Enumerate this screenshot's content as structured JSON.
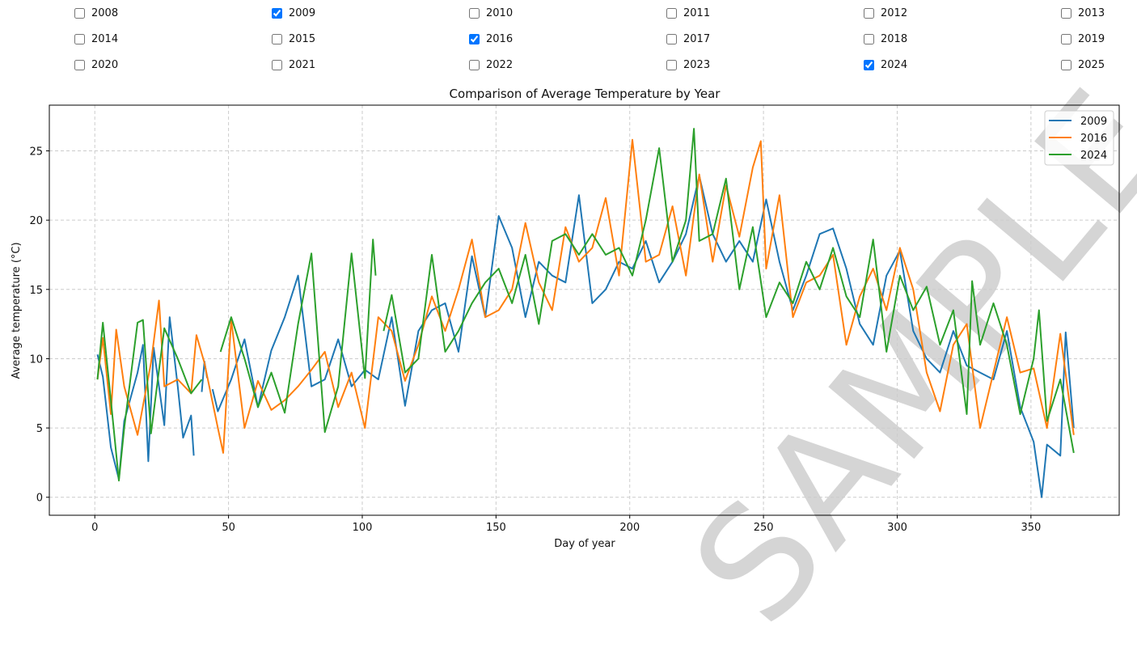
{
  "year_filters": [
    {
      "label": "2008",
      "checked": false
    },
    {
      "label": "2009",
      "checked": true
    },
    {
      "label": "2010",
      "checked": false
    },
    {
      "label": "2011",
      "checked": false
    },
    {
      "label": "2012",
      "checked": false
    },
    {
      "label": "2013",
      "checked": false
    },
    {
      "label": "2014",
      "checked": false
    },
    {
      "label": "2015",
      "checked": false
    },
    {
      "label": "2016",
      "checked": true
    },
    {
      "label": "2017",
      "checked": false
    },
    {
      "label": "2018",
      "checked": false
    },
    {
      "label": "2019",
      "checked": false
    },
    {
      "label": "2020",
      "checked": false
    },
    {
      "label": "2021",
      "checked": false
    },
    {
      "label": "2022",
      "checked": false
    },
    {
      "label": "2023",
      "checked": false
    },
    {
      "label": "2024",
      "checked": true
    },
    {
      "label": "2025",
      "checked": false
    }
  ],
  "watermark": "SAMPLE",
  "chart_data": {
    "type": "line",
    "title": "Comparison of Average Temperature by Year",
    "xlabel": "Day of year",
    "ylabel": "Average temperature (°C)",
    "xlim": [
      -17,
      383
    ],
    "ylim": [
      -1.3,
      28.3
    ],
    "xticks": [
      0,
      50,
      100,
      150,
      200,
      250,
      300,
      350
    ],
    "yticks": [
      0,
      5,
      10,
      15,
      20,
      25
    ],
    "grid": true,
    "legend": "top-right",
    "series": [
      {
        "name": "2009",
        "color": "#1f77b4",
        "points": [
          [
            1,
            10.3
          ],
          [
            3,
            8.7
          ],
          [
            6,
            3.6
          ],
          [
            9,
            1.3
          ],
          [
            11,
            5.5
          ],
          [
            16,
            9
          ],
          [
            18,
            11
          ],
          [
            20,
            2.6
          ],
          [
            22,
            10.8
          ],
          [
            26,
            5.2
          ],
          [
            28,
            13
          ],
          [
            31,
            8
          ],
          [
            33,
            4.3
          ],
          [
            36,
            5.9
          ],
          [
            37,
            3.0
          ],
          [
            38,
            null
          ],
          [
            40,
            7.6
          ],
          [
            41,
            9.8
          ],
          [
            42,
            8.6
          ],
          [
            43,
            null
          ],
          [
            44,
            7.8
          ],
          [
            46,
            6.2
          ],
          [
            51,
            8.5
          ],
          [
            56,
            11.4
          ],
          [
            61,
            6.5
          ],
          [
            66,
            10.6
          ],
          [
            71,
            13
          ],
          [
            76,
            16
          ],
          [
            81,
            8
          ],
          [
            86,
            8.5
          ],
          [
            91,
            11.4
          ],
          [
            96,
            8
          ],
          [
            101,
            9.2
          ],
          [
            106,
            8.5
          ],
          [
            111,
            13
          ],
          [
            116,
            6.6
          ],
          [
            121,
            12
          ],
          [
            126,
            13.5
          ],
          [
            131,
            14
          ],
          [
            136,
            10.5
          ],
          [
            141,
            17.4
          ],
          [
            146,
            13
          ],
          [
            151,
            20.3
          ],
          [
            156,
            18
          ],
          [
            161,
            13
          ],
          [
            166,
            17
          ],
          [
            171,
            16
          ],
          [
            176,
            15.5
          ],
          [
            181,
            21.8
          ],
          [
            186,
            14
          ],
          [
            191,
            15
          ],
          [
            196,
            17
          ],
          [
            201,
            16.5
          ],
          [
            206,
            18.5
          ],
          [
            211,
            15.5
          ],
          [
            216,
            17
          ],
          [
            221,
            19
          ],
          [
            226,
            23.2
          ],
          [
            231,
            19
          ],
          [
            236,
            17
          ],
          [
            241,
            18.5
          ],
          [
            246,
            17
          ],
          [
            251,
            21.5
          ],
          [
            256,
            17
          ],
          [
            261,
            13.5
          ],
          [
            266,
            16
          ],
          [
            271,
            19
          ],
          [
            276,
            19.4
          ],
          [
            281,
            16.5
          ],
          [
            286,
            12.5
          ],
          [
            291,
            11
          ],
          [
            296,
            16
          ],
          [
            301,
            17.8
          ],
          [
            306,
            12
          ],
          [
            311,
            10
          ],
          [
            316,
            9
          ],
          [
            321,
            12
          ],
          [
            326,
            9.5
          ],
          [
            331,
            9
          ],
          [
            336,
            8.5
          ],
          [
            341,
            12
          ],
          [
            346,
            6.5
          ],
          [
            351,
            4
          ],
          [
            354,
            0
          ],
          [
            356,
            3.8
          ],
          [
            361,
            3
          ],
          [
            363,
            11.9
          ],
          [
            366,
            5
          ]
        ]
      },
      {
        "name": "2016",
        "color": "#ff7f0e",
        "points": [
          [
            1,
            8.5
          ],
          [
            3,
            11.5
          ],
          [
            6,
            6
          ],
          [
            8,
            12.1
          ],
          [
            11,
            8
          ],
          [
            16,
            4.5
          ],
          [
            21,
            9.7
          ],
          [
            24,
            14.2
          ],
          [
            26,
            8
          ],
          [
            31,
            8.5
          ],
          [
            36,
            7.5
          ],
          [
            38,
            11.7
          ],
          [
            41,
            9.7
          ],
          [
            46,
            5
          ],
          [
            48,
            3.2
          ],
          [
            51,
            12.8
          ],
          [
            56,
            5
          ],
          [
            61,
            8.4
          ],
          [
            66,
            6.3
          ],
          [
            71,
            7
          ],
          [
            76,
            8
          ],
          [
            81,
            9.2
          ],
          [
            86,
            10.5
          ],
          [
            91,
            6.5
          ],
          [
            96,
            9
          ],
          [
            101,
            5
          ],
          [
            106,
            13
          ],
          [
            111,
            12
          ],
          [
            116,
            8.4
          ],
          [
            121,
            11
          ],
          [
            126,
            14.5
          ],
          [
            131,
            12
          ],
          [
            136,
            15
          ],
          [
            141,
            18.6
          ],
          [
            146,
            13
          ],
          [
            151,
            13.5
          ],
          [
            156,
            15
          ],
          [
            161,
            19.8
          ],
          [
            166,
            15.5
          ],
          [
            171,
            13.5
          ],
          [
            176,
            19.5
          ],
          [
            181,
            17
          ],
          [
            186,
            18
          ],
          [
            191,
            21.6
          ],
          [
            196,
            16
          ],
          [
            201,
            25.8
          ],
          [
            206,
            17
          ],
          [
            211,
            17.5
          ],
          [
            216,
            21
          ],
          [
            221,
            16
          ],
          [
            226,
            23.3
          ],
          [
            231,
            17
          ],
          [
            236,
            22.5
          ],
          [
            241,
            18.8
          ],
          [
            246,
            23.8
          ],
          [
            249,
            25.7
          ],
          [
            251,
            16.5
          ],
          [
            256,
            21.8
          ],
          [
            261,
            13
          ],
          [
            266,
            15.5
          ],
          [
            271,
            16
          ],
          [
            276,
            17.5
          ],
          [
            281,
            11
          ],
          [
            286,
            14.5
          ],
          [
            291,
            16.5
          ],
          [
            296,
            13.5
          ],
          [
            301,
            18
          ],
          [
            306,
            15
          ],
          [
            311,
            9
          ],
          [
            316,
            6.2
          ],
          [
            321,
            11
          ],
          [
            326,
            12.5
          ],
          [
            331,
            5
          ],
          [
            336,
            9
          ],
          [
            341,
            13
          ],
          [
            346,
            9
          ],
          [
            351,
            9.3
          ],
          [
            356,
            5
          ],
          [
            361,
            11.8
          ],
          [
            366,
            4.5
          ]
        ]
      },
      {
        "name": "2024",
        "color": "#2ca02c",
        "points": [
          [
            1,
            8.5
          ],
          [
            3,
            12.6
          ],
          [
            6,
            7
          ],
          [
            9,
            1.2
          ],
          [
            11,
            5
          ],
          [
            16,
            12.6
          ],
          [
            18,
            12.8
          ],
          [
            21,
            4.6
          ],
          [
            26,
            12.2
          ],
          [
            31,
            10
          ],
          [
            36,
            7.5
          ],
          [
            40,
            8.5
          ],
          [
            41,
            null
          ],
          [
            47,
            10.5
          ],
          [
            51,
            13
          ],
          [
            56,
            10
          ],
          [
            61,
            6.5
          ],
          [
            66,
            9
          ],
          [
            71,
            6.1
          ],
          [
            76,
            12.5
          ],
          [
            81,
            17.6
          ],
          [
            86,
            4.7
          ],
          [
            91,
            8
          ],
          [
            96,
            17.6
          ],
          [
            101,
            8.6
          ],
          [
            104,
            18.6
          ],
          [
            105,
            16
          ],
          [
            106,
            null
          ],
          [
            108,
            12
          ],
          [
            111,
            14.6
          ],
          [
            116,
            9
          ],
          [
            121,
            10
          ],
          [
            126,
            17.5
          ],
          [
            131,
            10.5
          ],
          [
            136,
            12
          ],
          [
            141,
            14
          ],
          [
            146,
            15.5
          ],
          [
            151,
            16.5
          ],
          [
            156,
            14
          ],
          [
            161,
            17.5
          ],
          [
            166,
            12.5
          ],
          [
            171,
            18.5
          ],
          [
            176,
            19
          ],
          [
            181,
            17.5
          ],
          [
            186,
            19
          ],
          [
            191,
            17.5
          ],
          [
            196,
            18
          ],
          [
            201,
            16
          ],
          [
            206,
            20
          ],
          [
            211,
            25.2
          ],
          [
            216,
            17
          ],
          [
            221,
            20
          ],
          [
            224,
            26.6
          ],
          [
            226,
            18.5
          ],
          [
            231,
            19
          ],
          [
            236,
            23
          ],
          [
            241,
            15
          ],
          [
            246,
            19.5
          ],
          [
            251,
            13
          ],
          [
            256,
            15.5
          ],
          [
            261,
            14
          ],
          [
            266,
            17
          ],
          [
            271,
            15
          ],
          [
            276,
            18
          ],
          [
            281,
            14.5
          ],
          [
            286,
            13
          ],
          [
            291,
            18.6
          ],
          [
            296,
            10.5
          ],
          [
            301,
            16
          ],
          [
            306,
            13.5
          ],
          [
            311,
            15.2
          ],
          [
            316,
            11
          ],
          [
            321,
            13.5
          ],
          [
            326,
            6
          ],
          [
            328,
            15.6
          ],
          [
            331,
            11
          ],
          [
            336,
            14
          ],
          [
            341,
            11
          ],
          [
            346,
            6
          ],
          [
            351,
            10
          ],
          [
            353,
            13.5
          ],
          [
            356,
            5.5
          ],
          [
            361,
            8.5
          ],
          [
            366,
            3.2
          ]
        ]
      }
    ]
  }
}
